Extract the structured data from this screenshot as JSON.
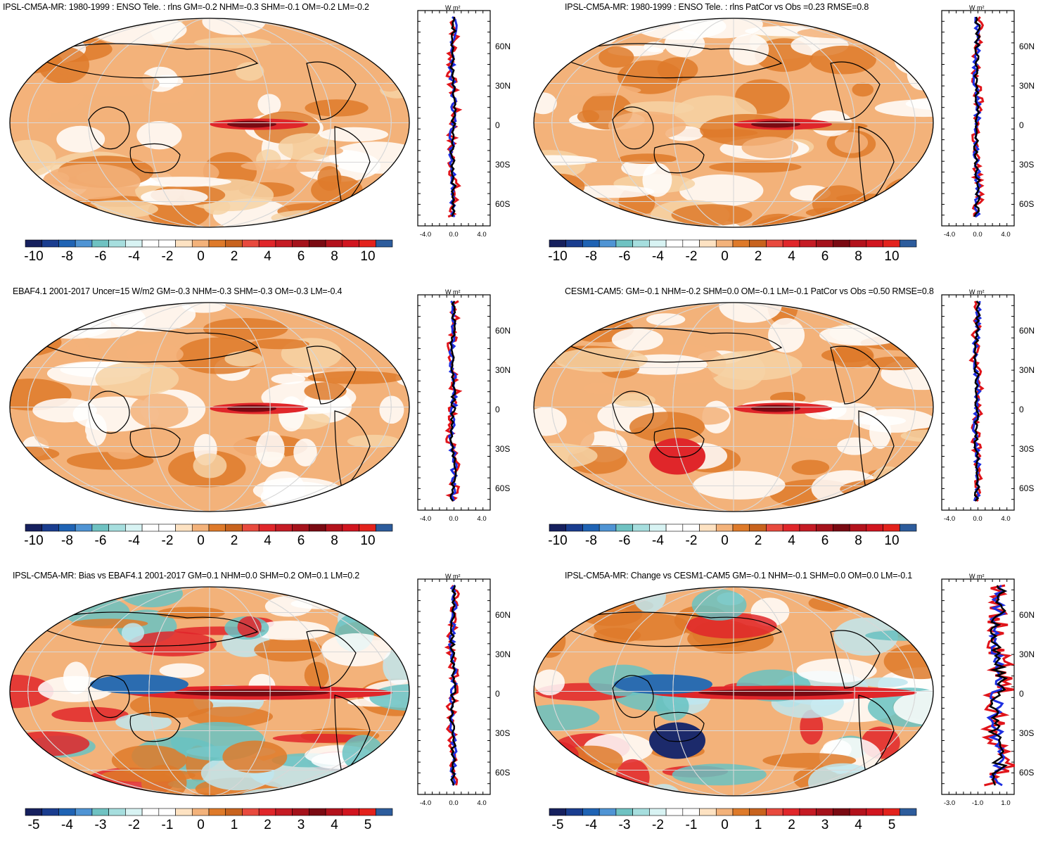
{
  "units": "W m²",
  "lat_labels": [
    "60N",
    "30N",
    "0",
    "30S",
    "60S"
  ],
  "colors": {
    "ocean_base": "#f6d2a4",
    "deep_red": "#7a0a12",
    "red": "#e0262a",
    "orange": "#de7a2a",
    "light_orange": "#f3b27a",
    "white": "#ffffff",
    "light_blue": "#bfe6ee",
    "teal": "#69c2c2",
    "blue": "#2b6cb0",
    "navy": "#1c2a6b",
    "line_model": "#1d2ee0",
    "line_obs": "#e0141a",
    "line_diff": "#000000"
  },
  "colorbar_a": [
    "#16205e",
    "#1a3d8f",
    "#1f63b4",
    "#4f94d4",
    "#6fc2c2",
    "#a6dede",
    "#d8f3f3",
    "#ffffff",
    "#ffffff",
    "#fde2c2",
    "#f3b27a",
    "#de7a2a",
    "#c8631e",
    "#e84a3e",
    "#e0262a",
    "#c51b24",
    "#a5121b",
    "#7a0a12",
    "#b3121c",
    "#d1151f",
    "#e3221c",
    "#2d5c9c"
  ],
  "panels": [
    {
      "title": "IPSL-CM5A-MR: 1980-1999 : ENSO Tele. : rlns GM=-0.2 NHM=-0.3 SHM=-0.1 OM=-0.2 LM=-0.2",
      "colorbar_labels": [
        "-10",
        "-8",
        "-6",
        "-4",
        "-2",
        "0",
        "2",
        "4",
        "6",
        "8",
        "10"
      ],
      "x_ticks": [
        "-4.0",
        "0.0",
        "4.0"
      ]
    },
    {
      "title": "IPSL-CM5A-MR: 1980-1999 : ENSO Tele. : rlns PatCor vs Obs =0.23 RMSE=0.8",
      "colorbar_labels": [
        "-10",
        "-8",
        "-6",
        "-4",
        "-2",
        "0",
        "2",
        "4",
        "6",
        "8",
        "10"
      ],
      "x_ticks": [
        "-4.0",
        "0.0",
        "4.0"
      ]
    },
    {
      "title": "EBAF4.1 2001-2017 Uncer=15 W/m2 GM=-0.3 NHM=-0.3 SHM=-0.3 OM=-0.3 LM=-0.4",
      "colorbar_labels": [
        "-10",
        "-8",
        "-6",
        "-4",
        "-2",
        "0",
        "2",
        "4",
        "6",
        "8",
        "10"
      ],
      "x_ticks": [
        "-4.0",
        "0.0",
        "4.0"
      ]
    },
    {
      "title": "CESM1-CAM5: GM=-0.1 NHM=-0.2 SHM=0.0 OM=-0.1 LM=-0.1 PatCor vs Obs =0.50 RMSE=0.8",
      "colorbar_labels": [
        "-10",
        "-8",
        "-6",
        "-4",
        "-2",
        "0",
        "2",
        "4",
        "6",
        "8",
        "10"
      ],
      "x_ticks": [
        "-4.0",
        "0.0",
        "4.0"
      ]
    },
    {
      "title": "IPSL-CM5A-MR: Bias vs EBAF4.1 2001-2017 GM=0.1 NHM=0.0 SHM=0.2 OM=0.1 LM=0.2",
      "colorbar_labels": [
        "-5",
        "-4",
        "-3",
        "-2",
        "-1",
        "0",
        "1",
        "2",
        "3",
        "4",
        "5"
      ],
      "x_ticks": [
        "-4.0",
        "0.0",
        "4.0"
      ]
    },
    {
      "title": "IPSL-CM5A-MR: Change vs CESM1-CAM5 GM=-0.1 NHM=-0.1 SHM=0.0 OM=0.0 LM=-0.1",
      "colorbar_labels": [
        "-5",
        "-4",
        "-3",
        "-2",
        "-1",
        "0",
        "1",
        "2",
        "3",
        "4",
        "5"
      ],
      "x_ticks": [
        "-3.0",
        "-1.0",
        "1.0"
      ]
    }
  ]
}
